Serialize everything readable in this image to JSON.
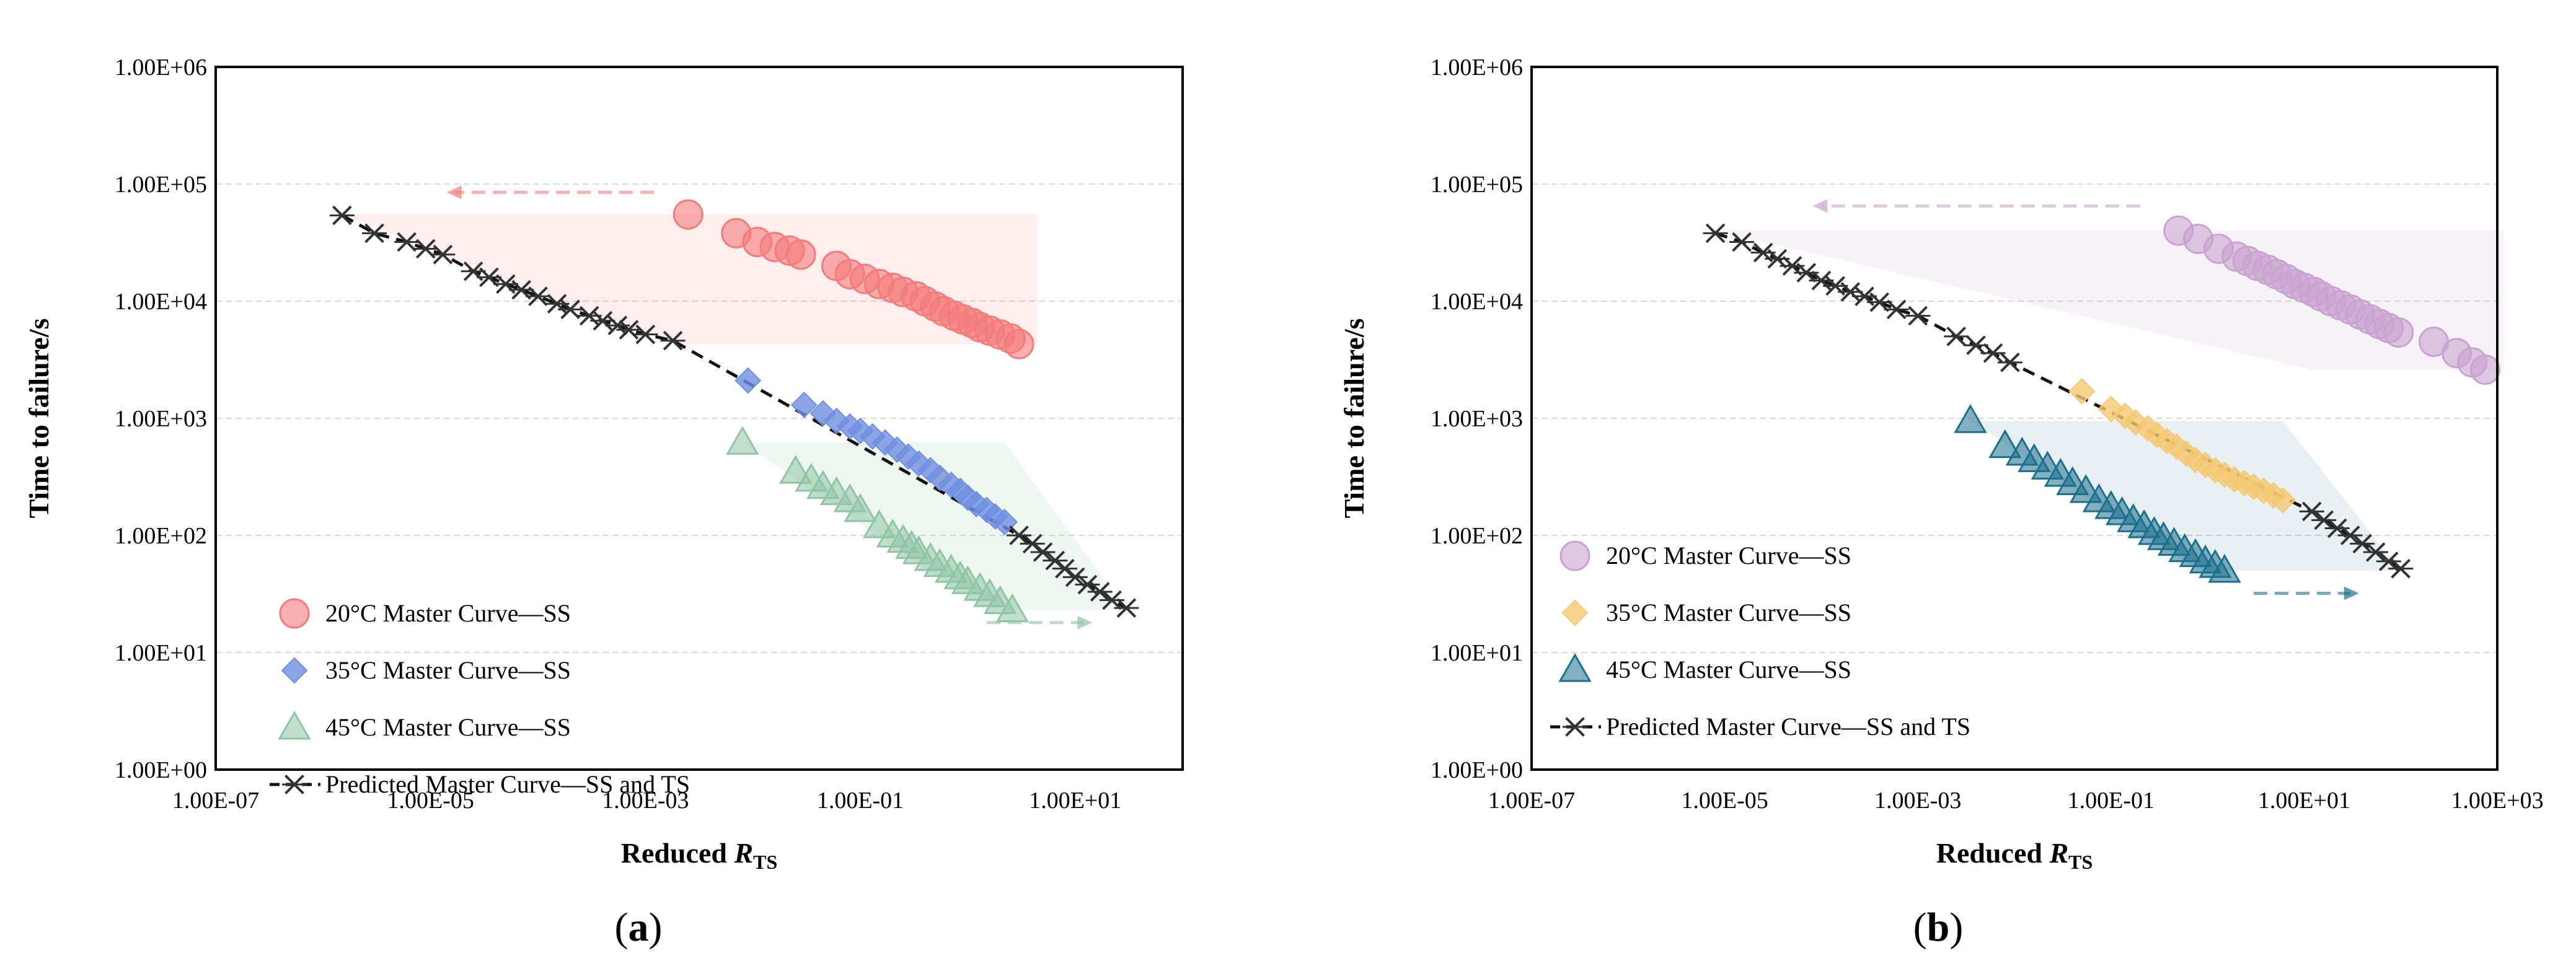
{
  "chart_data": [
    {
      "type": "scatter",
      "panel_label": "a",
      "axes": {
        "xscale": "log",
        "yscale": "log",
        "xlim": [
          1e-07,
          100.0
        ],
        "ylim": [
          1,
          1000000.0
        ]
      },
      "xlabel": {
        "prefix": "Reduced ",
        "symbol": "R",
        "subscript": "TS"
      },
      "ylabel": "Time to failure/s",
      "x_ticks": [
        "1.00E-07",
        "1.00E-05",
        "1.00E-03",
        "1.00E-01",
        "1.00E+01"
      ],
      "y_ticks": [
        "1.00E+00",
        "1.00E+01",
        "1.00E+02",
        "1.00E+03",
        "1.00E+04",
        "1.00E+05",
        "1.00E+06"
      ],
      "series": [
        {
          "name": "20°C Master Curve—SS",
          "marker": "circle",
          "color": "#f47b7b",
          "x": [
            0.0025,
            0.007,
            0.011,
            0.016,
            0.022,
            0.028,
            0.06,
            0.08,
            0.11,
            0.15,
            0.2,
            0.25,
            0.33,
            0.4,
            0.5,
            0.6,
            0.75,
            0.9,
            1.1,
            1.3,
            1.6,
            2.0,
            2.5,
            3.0
          ],
          "y": [
            55000,
            38000,
            32000,
            29000,
            27000,
            25000,
            20000,
            17000,
            15500,
            14000,
            13000,
            12000,
            11000,
            10000,
            9000,
            8200,
            7500,
            7000,
            6500,
            6000,
            5600,
            5200,
            4800,
            4300
          ]
        },
        {
          "name": "35°C Master Curve—SS",
          "marker": "diamond",
          "color": "#6f8fe0",
          "x": [
            0.009,
            0.03,
            0.045,
            0.06,
            0.08,
            0.1,
            0.13,
            0.17,
            0.22,
            0.28,
            0.35,
            0.45,
            0.55,
            0.7,
            0.85,
            1.0,
            1.2,
            1.5,
            1.8,
            2.2
          ],
          "y": [
            2100,
            1300,
            1100,
            950,
            850,
            780,
            700,
            620,
            540,
            470,
            410,
            360,
            310,
            270,
            240,
            210,
            185,
            165,
            145,
            130
          ]
        },
        {
          "name": "45°C Master Curve—SS",
          "marker": "triangle",
          "color": "#8fc4a4",
          "x": [
            0.008,
            0.025,
            0.035,
            0.045,
            0.06,
            0.08,
            0.1,
            0.15,
            0.2,
            0.25,
            0.3,
            0.35,
            0.45,
            0.55,
            0.7,
            0.85,
            1.0,
            1.3,
            1.6,
            2.0,
            2.6
          ],
          "y": [
            620,
            350,
            300,
            260,
            230,
            200,
            165,
            120,
            100,
            90,
            80,
            72,
            63,
            56,
            50,
            44,
            40,
            35,
            31,
            27,
            23
          ]
        },
        {
          "name": "Predicted Master Curve—SS and TS",
          "marker": "asterisk",
          "line": "dashed",
          "color": "#1a1a1a",
          "x": [
            1.5e-06,
            3e-06,
            6e-06,
            9e-06,
            1.3e-05,
            2.5e-05,
            3.5e-05,
            5e-05,
            7e-05,
            0.0001,
            0.00015,
            0.0002,
            0.0003,
            0.0004,
            0.00055,
            0.0007,
            0.001,
            0.0018,
            3,
            4,
            5,
            6.5,
            8,
            10,
            13,
            17,
            22,
            30
          ],
          "y": [
            54000,
            38000,
            32000,
            28000,
            25000,
            18000,
            16000,
            14000,
            12500,
            11000,
            9500,
            8500,
            7500,
            6800,
            6200,
            5700,
            5200,
            4600,
            100,
            85,
            72,
            61,
            52,
            44,
            38,
            33,
            28,
            24
          ]
        }
      ]
    },
    {
      "type": "scatter",
      "panel_label": "b",
      "axes": {
        "xscale": "log",
        "yscale": "log",
        "xlim": [
          1e-07,
          1000.0
        ],
        "ylim": [
          1,
          1000000.0
        ]
      },
      "xlabel": {
        "prefix": "Reduced ",
        "symbol": "R",
        "subscript": "TS"
      },
      "ylabel": "Time to failure/s",
      "x_ticks": [
        "1.00E-07",
        "1.00E-05",
        "1.00E-03",
        "1.00E-01",
        "1.00E+01",
        "1.00E+03"
      ],
      "y_ticks": [
        "1.00E+00",
        "1.00E+01",
        "1.00E+02",
        "1.00E+03",
        "1.00E+04",
        "1.00E+05",
        "1.00E+06"
      ],
      "series": [
        {
          "name": "20°C Master Curve—SS",
          "marker": "circle",
          "color": "#c9a3cf",
          "x": [
            0.5,
            0.8,
            1.3,
            2.0,
            2.6,
            3.3,
            4.2,
            5.2,
            6.5,
            8,
            10,
            12.5,
            15,
            19,
            24,
            30,
            38,
            48,
            60,
            75,
            95,
            220,
            380,
            550,
            750
          ],
          "y": [
            40000,
            34000,
            28000,
            24000,
            22000,
            20000,
            18500,
            17000,
            15500,
            14000,
            13000,
            12000,
            11000,
            10000,
            9200,
            8500,
            7700,
            7000,
            6400,
            5900,
            5400,
            4500,
            3600,
            3000,
            2600
          ]
        },
        {
          "name": "35°C Master Curve—SS",
          "marker": "diamond",
          "color": "#f5c872",
          "x": [
            0.05,
            0.1,
            0.14,
            0.18,
            0.24,
            0.3,
            0.38,
            0.48,
            0.6,
            0.75,
            0.95,
            1.2,
            1.5,
            1.9,
            2.4,
            3.0,
            3.8,
            4.8,
            6.0
          ],
          "y": [
            1700,
            1200,
            1050,
            920,
            820,
            720,
            640,
            570,
            500,
            440,
            400,
            360,
            330,
            300,
            280,
            260,
            240,
            220,
            200
          ]
        },
        {
          "name": "45°C Master Curve—SS",
          "marker": "triangle",
          "color": "#1b6f8c",
          "x": [
            0.0035,
            0.008,
            0.012,
            0.016,
            0.022,
            0.03,
            0.04,
            0.055,
            0.075,
            0.1,
            0.13,
            0.17,
            0.22,
            0.28,
            0.35,
            0.45,
            0.58,
            0.75,
            0.95,
            1.2,
            1.5
          ],
          "y": [
            950,
            580,
            500,
            440,
            380,
            330,
            280,
            240,
            200,
            175,
            155,
            135,
            120,
            105,
            95,
            85,
            75,
            68,
            60,
            55,
            50
          ]
        },
        {
          "name": "Predicted Master Curve—SS and TS",
          "marker": "asterisk",
          "line": "dashed",
          "color": "#1a1a1a",
          "x": [
            8e-06,
            1.5e-05,
            2.5e-05,
            3.5e-05,
            5e-05,
            7e-05,
            0.0001,
            0.00014,
            0.0002,
            0.00028,
            0.0004,
            0.0006,
            0.001,
            0.0025,
            0.004,
            0.006,
            0.009,
            12,
            16,
            22,
            30,
            40,
            55,
            75,
            100
          ],
          "y": [
            38000,
            32000,
            26000,
            23000,
            20000,
            17500,
            15000,
            13500,
            12000,
            11000,
            9800,
            8500,
            7500,
            5000,
            4200,
            3600,
            3000,
            160,
            135,
            115,
            100,
            85,
            72,
            60,
            52
          ]
        }
      ]
    }
  ]
}
